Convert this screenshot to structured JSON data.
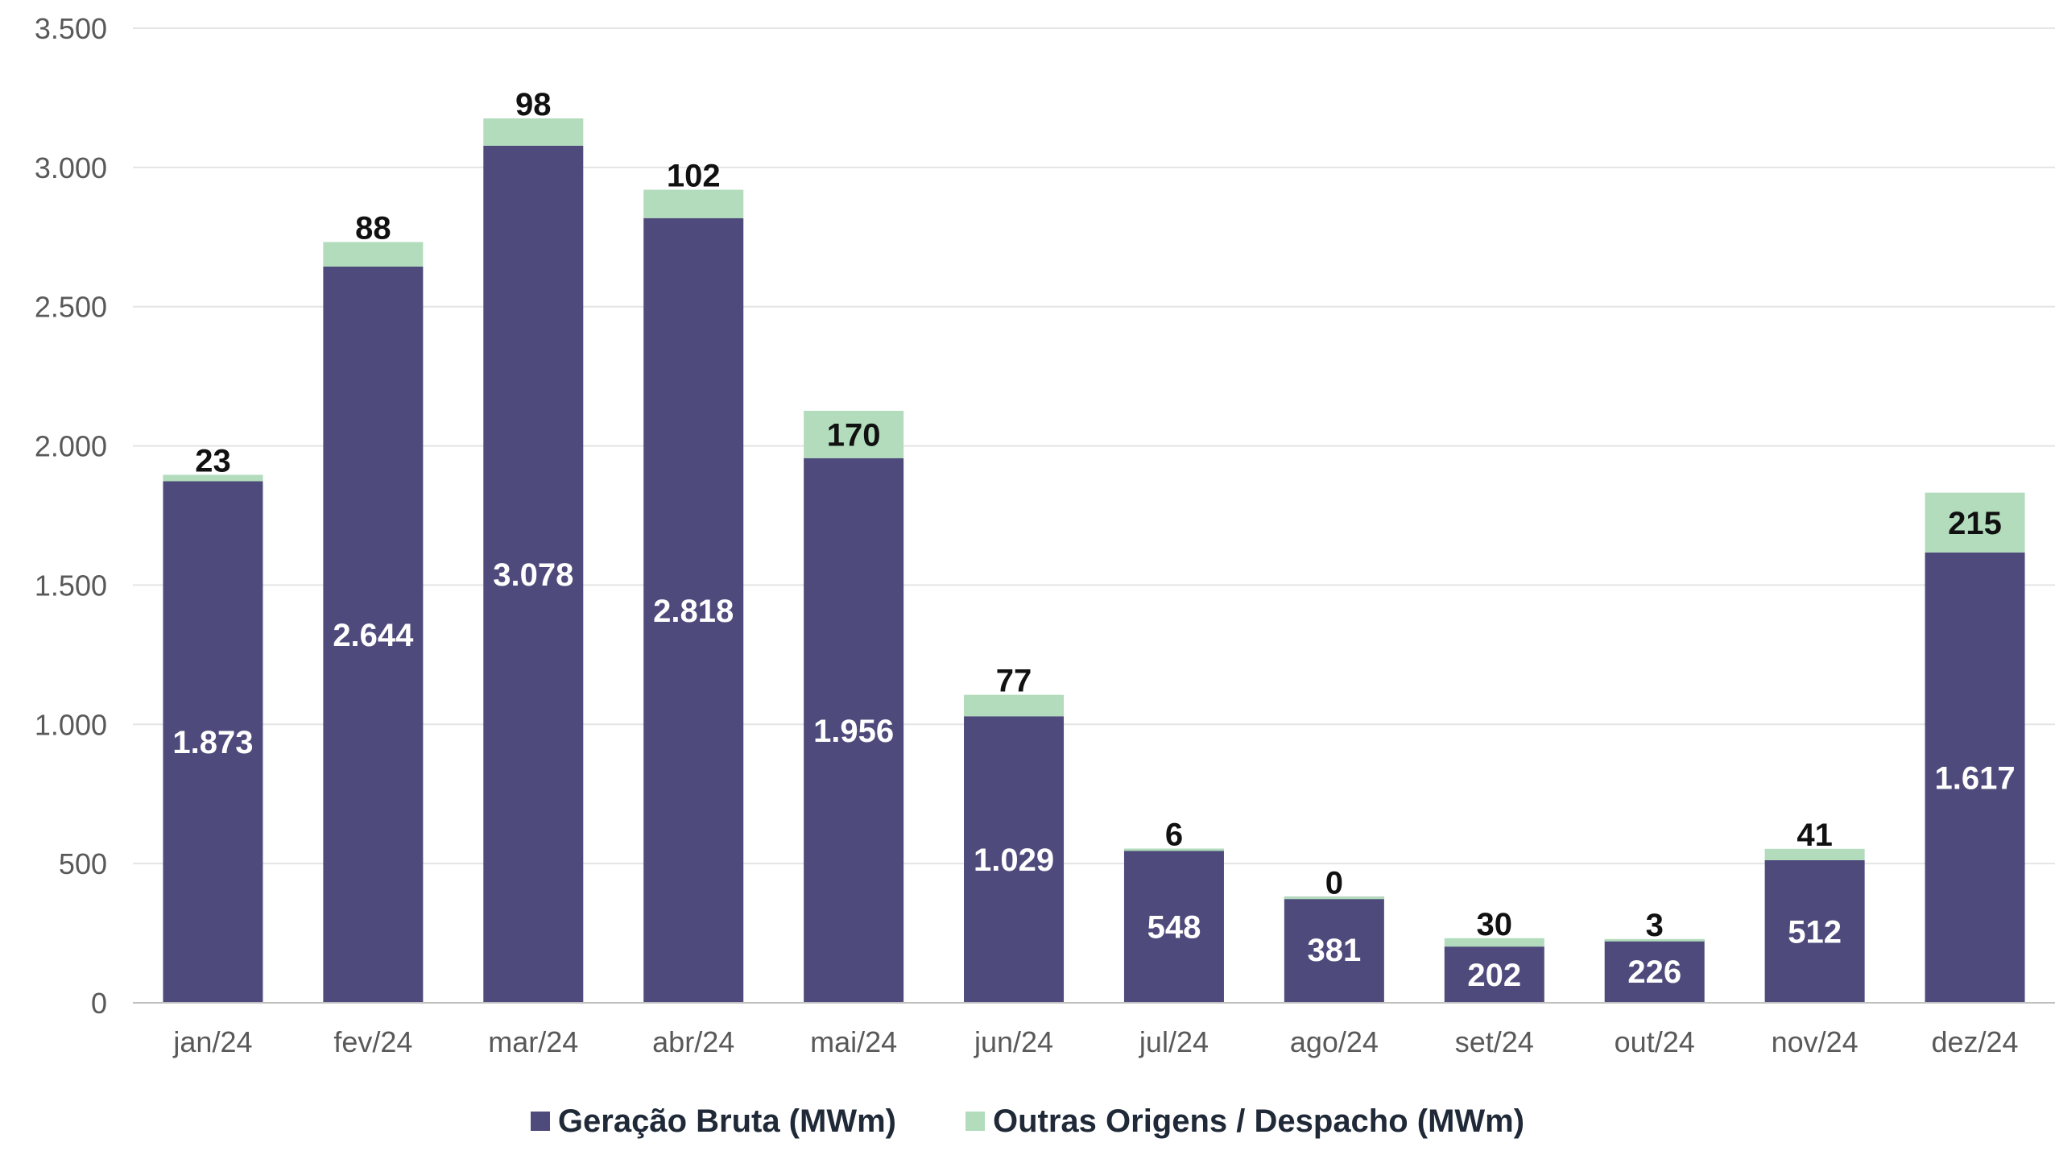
{
  "chart_data": {
    "type": "bar",
    "stacked": true,
    "categories": [
      "jan/24",
      "fev/24",
      "mar/24",
      "abr/24",
      "mai/24",
      "jun/24",
      "jul/24",
      "ago/24",
      "set/24",
      "out/24",
      "nov/24",
      "dez/24"
    ],
    "series": [
      {
        "name": "Geração Bruta (MWm)",
        "color": "#4e4b7c",
        "values": [
          1873,
          2644,
          3078,
          2818,
          1956,
          1029,
          548,
          381,
          202,
          226,
          512,
          1617
        ],
        "labels": [
          "1.873",
          "2.644",
          "3.078",
          "2.818",
          "1.956",
          "1.029",
          "548",
          "381",
          "202",
          "226",
          "512",
          "1.617"
        ]
      },
      {
        "name": "Outras Origens / Despacho (MWm)",
        "color": "#b2dcbc",
        "values": [
          23,
          88,
          98,
          102,
          170,
          77,
          6,
          0,
          30,
          3,
          41,
          215
        ],
        "labels": [
          "23",
          "88",
          "98",
          "102",
          "170",
          "77",
          "6",
          "0",
          "30",
          "3",
          "41",
          "215"
        ]
      }
    ],
    "ylim": [
      0,
      3500
    ],
    "yticks": [
      0,
      500,
      1000,
      1500,
      2000,
      2500,
      3000,
      3500
    ],
    "ytick_labels": [
      "0",
      "500",
      "1.000",
      "1.500",
      "2.000",
      "2.500",
      "3.000",
      "3.500"
    ],
    "grid": true,
    "legend_position": "bottom",
    "title": "",
    "xlabel": "",
    "ylabel": ""
  }
}
